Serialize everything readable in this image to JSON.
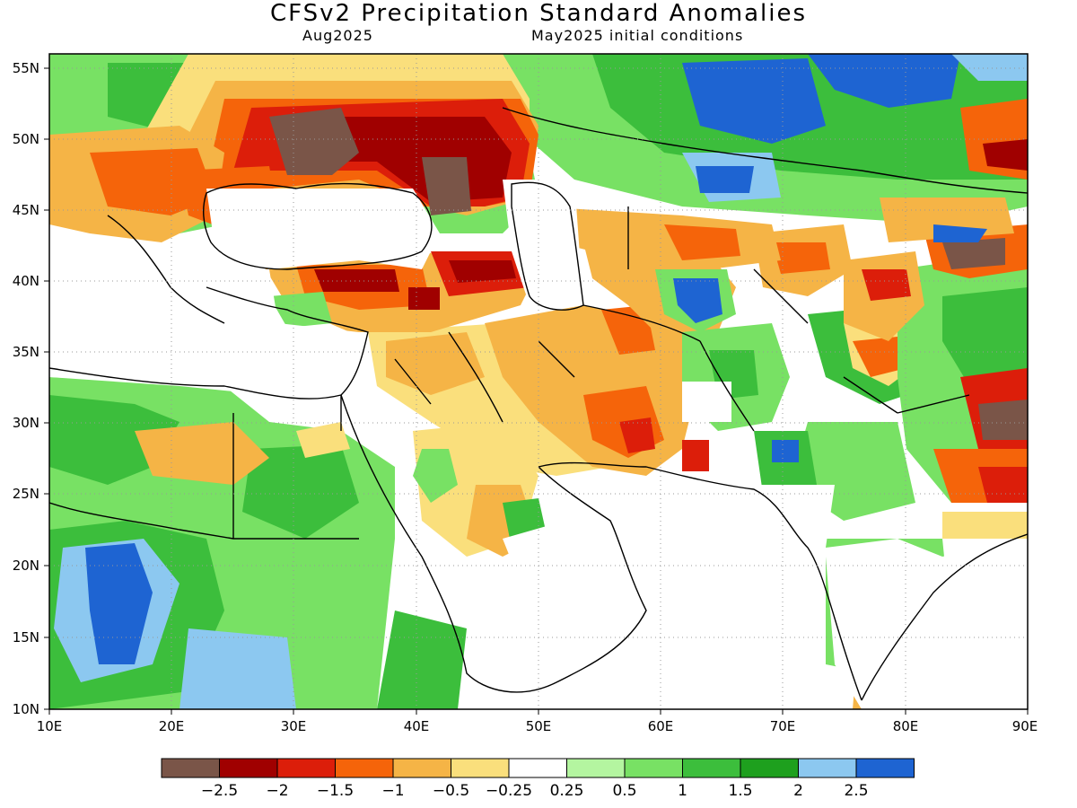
{
  "title": "CFSv2 Precipitation Standard Anomalies",
  "subtitle_left": "Aug2025",
  "subtitle_right": "May2025 initial conditions",
  "lat_ticks": [
    "55N",
    "50N",
    "45N",
    "40N",
    "35N",
    "30N",
    "25N",
    "20N",
    "15N",
    "10N"
  ],
  "lon_ticks": [
    "10E",
    "20E",
    "30E",
    "40E",
    "50E",
    "60E",
    "70E",
    "80E",
    "90E"
  ],
  "colorbar": {
    "colors": [
      "#7a5548",
      "#a00000",
      "#dc1e0a",
      "#f5640a",
      "#f5b446",
      "#fadf7c",
      "#ffffff",
      "#b4f5a0",
      "#78e164",
      "#3cbe3c",
      "#1ea01e",
      "#8cc8f0",
      "#1e64d2"
    ],
    "labels": [
      "-2.5",
      "-2",
      "-1.5",
      "-1",
      "-0.5",
      "-0.25",
      "0.25",
      "0.5",
      "1",
      "1.5",
      "2",
      "2.5"
    ]
  }
}
